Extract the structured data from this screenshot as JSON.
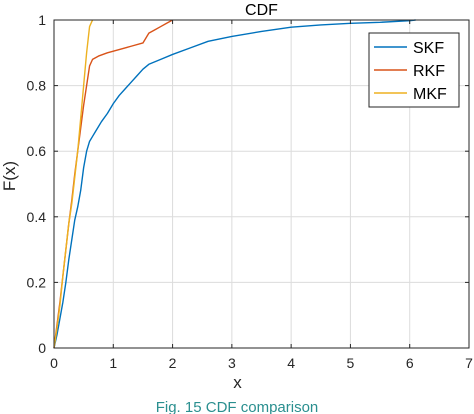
{
  "caption": "Fig. 15   CDF comparison",
  "chart_data": {
    "type": "line",
    "title": "CDF",
    "xlabel": "x",
    "ylabel": "F(x)",
    "xlim": [
      0,
      7
    ],
    "ylim": [
      0,
      1
    ],
    "xticks": [
      0,
      1,
      2,
      3,
      4,
      5,
      6,
      7
    ],
    "yticks": [
      0,
      0.2,
      0.4,
      0.6,
      0.8,
      1
    ],
    "xtick_labels": [
      "0",
      "1",
      "2",
      "3",
      "4",
      "5",
      "6",
      "7"
    ],
    "ytick_labels": [
      "0",
      "0.2",
      "0.4",
      "0.6",
      "0.8",
      "1"
    ],
    "grid": true,
    "legend_position": "top-right",
    "series": [
      {
        "name": "SKF",
        "color": "#0072BD",
        "x": [
          0,
          0.05,
          0.1,
          0.15,
          0.2,
          0.25,
          0.3,
          0.35,
          0.4,
          0.45,
          0.5,
          0.55,
          0.6,
          0.65,
          0.7,
          0.8,
          0.9,
          1.0,
          1.1,
          1.2,
          1.3,
          1.4,
          1.5,
          1.6,
          1.8,
          2.0,
          2.3,
          2.6,
          3.0,
          3.5,
          4.0,
          4.5,
          5.0,
          5.5,
          6.0,
          6.1
        ],
        "y": [
          0,
          0.04,
          0.09,
          0.14,
          0.2,
          0.27,
          0.33,
          0.39,
          0.43,
          0.48,
          0.55,
          0.6,
          0.63,
          0.645,
          0.66,
          0.69,
          0.715,
          0.745,
          0.77,
          0.79,
          0.81,
          0.83,
          0.85,
          0.865,
          0.88,
          0.895,
          0.915,
          0.935,
          0.95,
          0.965,
          0.978,
          0.985,
          0.99,
          0.993,
          0.998,
          1.0
        ]
      },
      {
        "name": "RKF",
        "color": "#D95319",
        "x": [
          0,
          0.05,
          0.1,
          0.15,
          0.2,
          0.25,
          0.3,
          0.35,
          0.4,
          0.45,
          0.5,
          0.55,
          0.6,
          0.65,
          0.75,
          0.9,
          1.1,
          1.3,
          1.5,
          1.6,
          1.7,
          1.8,
          1.9,
          2.0
        ],
        "y": [
          0,
          0.07,
          0.14,
          0.22,
          0.3,
          0.38,
          0.45,
          0.53,
          0.6,
          0.67,
          0.74,
          0.8,
          0.86,
          0.88,
          0.89,
          0.9,
          0.91,
          0.92,
          0.93,
          0.96,
          0.97,
          0.98,
          0.99,
          1.0
        ]
      },
      {
        "name": "MKF",
        "color": "#EDB120",
        "x": [
          0,
          0.05,
          0.1,
          0.15,
          0.2,
          0.25,
          0.3,
          0.35,
          0.4,
          0.45,
          0.5,
          0.55,
          0.6,
          0.65
        ],
        "y": [
          0,
          0.06,
          0.13,
          0.22,
          0.3,
          0.38,
          0.44,
          0.52,
          0.6,
          0.7,
          0.8,
          0.9,
          0.98,
          1.0
        ]
      }
    ]
  }
}
